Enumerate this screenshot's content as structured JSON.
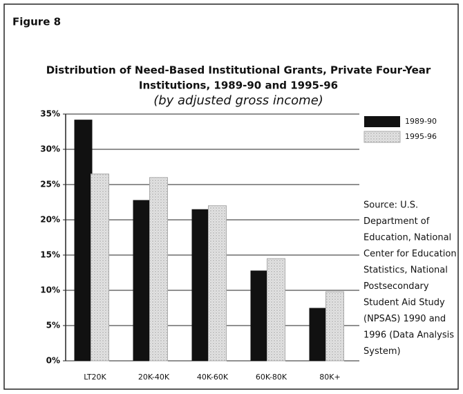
{
  "chart_data": {
    "type": "bar",
    "figure_label": "Figure 8",
    "title": [
      "Distribution of Need-Based Institutional Grants, Private Four-Year",
      "Institutions, 1989-90 and 1995-96"
    ],
    "subtitle": "(by adjusted gross income)",
    "categories": [
      "LT20K",
      "20K-40K",
      "40K-60K",
      "60K-80K",
      "80K+"
    ],
    "series": [
      {
        "name": "1989-90",
        "color": "#111111",
        "values": [
          34.2,
          22.8,
          21.5,
          12.8,
          7.5
        ]
      },
      {
        "name": "1995-96",
        "color": "#d9d9d9",
        "values": [
          26.5,
          26,
          22,
          14.5,
          9.8
        ]
      }
    ],
    "ylim": [
      0,
      35
    ],
    "yticks": [
      {
        "value": 0,
        "label": "0%"
      },
      {
        "value": 5,
        "label": "5%"
      },
      {
        "value": 10,
        "label": "10%"
      },
      {
        "value": 15,
        "label": "15%"
      },
      {
        "value": 20,
        "label": "20%"
      },
      {
        "value": 25,
        "label": "25%"
      },
      {
        "value": 30,
        "label": "30%"
      },
      {
        "value": 35,
        "label": "35%"
      }
    ],
    "grid": true,
    "source": [
      "Source: U.S.",
      "Department of",
      "Education, National",
      "Center for Education",
      "Statistics, National",
      "Postsecondary",
      "Student Aid Study",
      "(NPSAS) 1990 and",
      "1996 (Data Analysis",
      "System)"
    ]
  }
}
